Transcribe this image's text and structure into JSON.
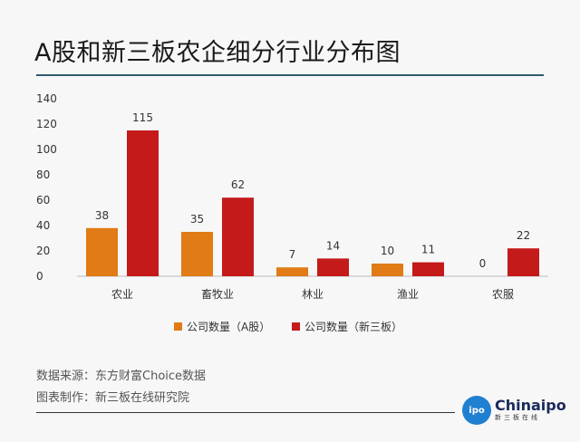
{
  "chart_data": {
    "type": "bar",
    "title": "A股和新三板农企细分行业分布图",
    "categories": [
      "农业",
      "畜牧业",
      "林业",
      "渔业",
      "农服"
    ],
    "series": [
      {
        "name": "公司数量（A股）",
        "values": [
          38,
          35,
          7,
          10,
          0
        ],
        "color": "#e07b16"
      },
      {
        "name": "公司数量（新三板）",
        "values": [
          115,
          62,
          14,
          11,
          22
        ],
        "color": "#c41a1a"
      }
    ],
    "ylim": [
      0,
      140
    ],
    "yticks": [
      0,
      20,
      40,
      60,
      80,
      100,
      120,
      140
    ],
    "grid": false,
    "legend": "bottom",
    "xlabel": "",
    "ylabel": ""
  },
  "footer": {
    "source": "数据来源：东方财富Choice数据",
    "maker": "图表制作：新三板在线研究院",
    "logo_main": "Chinaipo",
    "logo_sub": "新三板在线",
    "logo_badge": "ipo"
  }
}
